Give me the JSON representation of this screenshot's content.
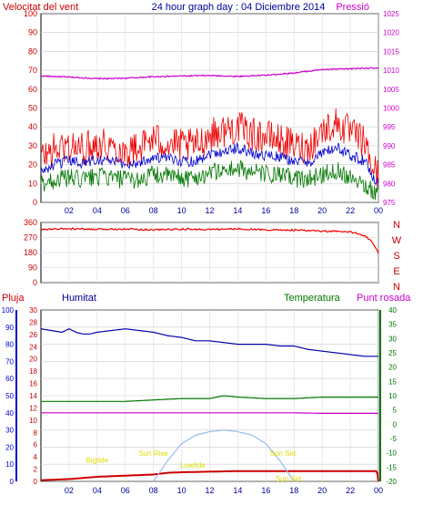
{
  "header": {
    "left_label": "Velocitat del vent",
    "title": "24 hour graph day : 04 Diciembre 2014",
    "right_label": "Pressió"
  },
  "bottom_header": {
    "pluja_label": "Pluja",
    "humitat_label": "Humitat",
    "temperatura_label": "Temperatura",
    "punt_rosada_label": "Punt rosada"
  },
  "chart_data": [
    {
      "type": "line",
      "name": "wind-pressure",
      "x_ticks": [
        "02",
        "04",
        "06",
        "08",
        "10",
        "12",
        "14",
        "16",
        "18",
        "20",
        "22",
        "00"
      ],
      "y_left": {
        "ylim": [
          0,
          100
        ],
        "ticks": [
          "0",
          "10",
          "20",
          "30",
          "40",
          "50",
          "60",
          "70",
          "80",
          "90",
          "100"
        ]
      },
      "y_right": {
        "ylim": [
          975,
          1025
        ],
        "ticks": [
          "975",
          "980",
          "985",
          "990",
          "995",
          "1000",
          "1005",
          "1010",
          "1015",
          "1020",
          "1025"
        ]
      },
      "series": [
        {
          "axis": "right",
          "color": "#cc00cc",
          "x": [
            0,
            2,
            4,
            5,
            6,
            8,
            10,
            12,
            14,
            16,
            18,
            20,
            22,
            23,
            24
          ],
          "values": [
            1008.5,
            1008.2,
            1007.8,
            1007.8,
            1007.9,
            1008.3,
            1008.5,
            1008.6,
            1008.4,
            1008.7,
            1009.3,
            1010.2,
            1010.4,
            1010.6,
            1010.5
          ]
        },
        {
          "axis": "left",
          "color": "#ee0000",
          "x": [
            0,
            1,
            2,
            3,
            4,
            5,
            6,
            7,
            8,
            9,
            10,
            11,
            12,
            13,
            14,
            15,
            16,
            17,
            18,
            19,
            20,
            21,
            22,
            23,
            23.5,
            24
          ],
          "values": [
            24,
            28,
            30,
            28,
            32,
            30,
            27,
            29,
            34,
            31,
            30,
            30,
            36,
            38,
            40,
            36,
            35,
            33,
            30,
            29,
            38,
            42,
            37,
            32,
            20,
            14
          ]
        },
        {
          "axis": "left",
          "color": "#0000cc",
          "x": [
            0,
            1,
            2,
            3,
            4,
            5,
            6,
            7,
            8,
            9,
            10,
            11,
            12,
            13,
            14,
            15,
            16,
            17,
            18,
            19,
            20,
            21,
            22,
            23,
            23.5,
            24
          ],
          "values": [
            16,
            20,
            22,
            21,
            23,
            22,
            20,
            21,
            24,
            23,
            22,
            22,
            26,
            27,
            29,
            26,
            25,
            24,
            22,
            21,
            26,
            29,
            25,
            22,
            15,
            10
          ]
        },
        {
          "axis": "left",
          "color": "#007700",
          "x": [
            0,
            1,
            2,
            3,
            4,
            5,
            6,
            7,
            8,
            9,
            10,
            11,
            12,
            13,
            14,
            15,
            16,
            17,
            18,
            19,
            20,
            21,
            22,
            23,
            23.5,
            24
          ],
          "values": [
            10,
            12,
            13,
            12,
            14,
            13,
            12,
            12,
            15,
            14,
            13,
            13,
            16,
            17,
            18,
            16,
            15,
            14,
            13,
            12,
            15,
            17,
            14,
            10,
            6,
            5
          ]
        }
      ]
    },
    {
      "type": "scatter",
      "name": "wind-direction",
      "x_ticks": [],
      "y_left": {
        "ylim": [
          0,
          360
        ],
        "ticks": [
          "0",
          "90",
          "180",
          "270",
          "360"
        ]
      },
      "y_right_labels": [
        "N",
        "W",
        "S",
        "E",
        "N"
      ],
      "series": [
        {
          "color": "#ee0000",
          "x": [
            0,
            2,
            4,
            6,
            8,
            10,
            12,
            14,
            16,
            18,
            20,
            21,
            22,
            22.5,
            23,
            23.5,
            24
          ],
          "values": [
            318,
            322,
            318,
            322,
            316,
            320,
            318,
            322,
            316,
            314,
            308,
            306,
            302,
            296,
            282,
            250,
            175
          ]
        }
      ]
    },
    {
      "type": "line",
      "name": "rain-humidity-temperature",
      "x_ticks": [
        "02",
        "04",
        "06",
        "08",
        "10",
        "12",
        "14",
        "16",
        "18",
        "20",
        "22",
        "00"
      ],
      "y_rain": {
        "ylim": [
          0,
          100
        ],
        "ticks": [
          "0",
          "10",
          "20",
          "30",
          "40",
          "50",
          "60",
          "70",
          "80",
          "90",
          "100"
        ]
      },
      "y_left": {
        "ylim": [
          0,
          30
        ],
        "ticks": [
          "0",
          "2",
          "4",
          "6",
          "8",
          "10",
          "12",
          "14",
          "16",
          "18",
          "20",
          "24",
          "26",
          "28",
          "30"
        ]
      },
      "y_right": {
        "ylim": [
          -20,
          40
        ],
        "ticks": [
          "-20",
          "-15",
          "-10",
          "-5",
          "0",
          "5",
          "10",
          "15",
          "20",
          "25",
          "30",
          "35",
          "40"
        ]
      },
      "series": [
        {
          "axis": "rain",
          "color": "#0000aa",
          "x": [
            0,
            1.5,
            2,
            2.5,
            3,
            3.5,
            4,
            5,
            6,
            7,
            8,
            9,
            10,
            10.5,
            11,
            12,
            13,
            14,
            15,
            16,
            17,
            18,
            19,
            20,
            21,
            22,
            23,
            24
          ],
          "values": [
            89,
            87,
            89,
            87,
            86,
            86,
            87,
            88,
            89,
            88,
            87,
            85,
            84,
            83,
            82,
            82,
            81,
            80,
            80,
            80,
            79,
            79,
            77,
            76,
            75,
            74,
            73,
            73
          ]
        },
        {
          "axis": "right",
          "color": "#007700",
          "x": [
            0,
            2,
            4,
            6,
            8,
            10,
            12,
            13,
            14,
            16,
            18,
            20,
            22,
            24
          ],
          "values": [
            8,
            8,
            8,
            8,
            8.5,
            9,
            9,
            10,
            9.5,
            9,
            9,
            9.5,
            9.5,
            9.5
          ]
        },
        {
          "axis": "right",
          "color": "#cc00cc",
          "x": [
            0,
            2,
            4,
            6,
            8,
            10,
            12,
            14,
            16,
            18,
            20,
            22,
            24
          ],
          "values": [
            4,
            4,
            4,
            4,
            4,
            4,
            4,
            4,
            4,
            4,
            3.8,
            3.8,
            3.8
          ]
        },
        {
          "axis": "left",
          "color": "#cc0000",
          "x": [
            0,
            2,
            4,
            6,
            8,
            9,
            10,
            12,
            14,
            16,
            18,
            20,
            22,
            23.9,
            24
          ],
          "values": [
            0.2,
            0.4,
            0.8,
            1.0,
            1.2,
            1.5,
            1.6,
            1.7,
            1.8,
            1.8,
            1.8,
            1.8,
            1.8,
            1.8,
            0
          ]
        },
        {
          "axis": "rain",
          "color": "#99bbee",
          "x": [
            8,
            9,
            10,
            11,
            12,
            13,
            14,
            15,
            16,
            17,
            18
          ],
          "values": [
            0,
            12,
            22,
            27,
            29,
            30,
            29,
            27,
            22,
            12,
            0
          ]
        }
      ],
      "annotations": [
        {
          "text": "Sun Rise",
          "x": 8.0,
          "value": 15
        },
        {
          "text": "Sun Set",
          "x": 17.2,
          "value": 15
        },
        {
          "text": "Lowtide",
          "x": 10.8,
          "value": 8
        },
        {
          "text": "Bigtide",
          "x": 4.0,
          "value": 11
        },
        {
          "text": "Sun Set",
          "x": 17.6,
          "value": 0
        }
      ]
    }
  ]
}
